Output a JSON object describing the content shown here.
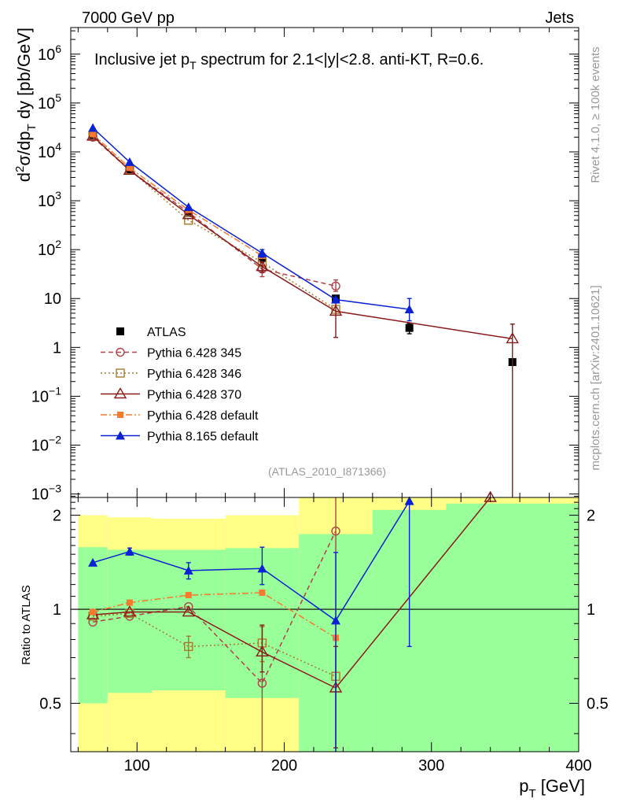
{
  "header": {
    "left": "7000 GeV pp",
    "right": "Jets"
  },
  "side_texts": {
    "rivet": "Rivet 4.1.0, ≥ 100k events",
    "mcplots": "mcplots.cern.ch [arXiv:2401.10621]"
  },
  "watermark": "(ATLAS_2010_I871366)",
  "colors": {
    "atlas": "#000000",
    "p345": "#b0424a",
    "p346": "#a67a2e",
    "p370": "#8b1a1a",
    "p6def": "#f57a2f",
    "p8def": "#0a22d4",
    "band_green": "#99ff99",
    "band_yellow": "#ffff88"
  },
  "chart_data": [
    {
      "type": "line",
      "title": "Inclusive jet p_T spectrum for 2.1<|y|<2.8.  anti-KT, R=0.6.",
      "title_parts": {
        "pre": "Inclusive jet p",
        "sub": "T",
        "post": " spectrum for 2.1<|y|<2.8.  anti-KT, R=0.6."
      },
      "ylabel": "d²σ/dp_T dy [pb/GeV]",
      "ylabel_parts": {
        "d": "d",
        "sup2": "2",
        "sigma": "σ/dp",
        "T": "T",
        "rest": " dy [pb/GeV]"
      },
      "yscale": "log",
      "ylim": [
        0.00085,
        3500000
      ],
      "xlim": [
        55,
        400
      ],
      "yticks": [
        {
          "v": 1000000,
          "b": "10",
          "e": "6"
        },
        {
          "v": 100000,
          "b": "10",
          "e": "5"
        },
        {
          "v": 10000,
          "b": "10",
          "e": "4"
        },
        {
          "v": 1000,
          "b": "10",
          "e": "3"
        },
        {
          "v": 100,
          "b": "10",
          "e": "2"
        },
        {
          "v": 10,
          "b": "10",
          "e": ""
        },
        {
          "v": 1,
          "b": "1",
          "e": ""
        },
        {
          "v": 0.1,
          "b": "10",
          "e": "−1"
        },
        {
          "v": 0.01,
          "b": "10",
          "e": "−2"
        },
        {
          "v": 0.001,
          "b": "10",
          "e": "−3"
        }
      ],
      "legend_position": "lower-left",
      "series": [
        {
          "name": "ATLAS",
          "key": "atlas",
          "marker": "square-filled",
          "line": "none",
          "x": [
            70,
            95,
            135,
            185,
            235,
            285,
            355
          ],
          "y": [
            22000,
            4400,
            560,
            68,
            10,
            2.5,
            0.5
          ],
          "err": [
            [
              0,
              0
            ],
            [
              0,
              0
            ],
            [
              0,
              0
            ],
            [
              0,
              0
            ],
            [
              0,
              0
            ],
            [
              0.6,
              0.6
            ],
            [
              0,
              0
            ]
          ]
        },
        {
          "name": "Pythia 6.428 345",
          "key": "p345",
          "marker": "circle-open",
          "line": "dashed",
          "x": [
            70,
            95,
            135,
            185,
            235
          ],
          "y": [
            20000,
            4200,
            580,
            40,
            18
          ],
          "err": [
            [
              0,
              0
            ],
            [
              0,
              0
            ],
            [
              0,
              0
            ],
            [
              12,
              8
            ],
            [
              4,
              6
            ]
          ]
        },
        {
          "name": "Pythia 6.428 346",
          "key": "p346",
          "marker": "square-open",
          "line": "dotted",
          "x": [
            70,
            95,
            135,
            185,
            235
          ],
          "y": [
            21000,
            4300,
            400,
            55,
            6
          ],
          "err": [
            [
              0,
              0
            ],
            [
              0,
              0
            ],
            [
              0,
              0
            ],
            [
              0,
              0
            ],
            [
              0,
              0
            ]
          ]
        },
        {
          "name": "Pythia 6.428 370",
          "key": "p370",
          "marker": "triangle-open",
          "line": "solid",
          "x": [
            70,
            95,
            135,
            185,
            235,
            355
          ],
          "y": [
            21000,
            4200,
            520,
            45,
            5.5,
            1.5
          ],
          "err": [
            [
              0,
              0
            ],
            [
              0,
              0
            ],
            [
              0,
              0
            ],
            [
              10,
              10
            ],
            [
              3.9,
              4.5
            ],
            [
              1.5,
              1.5
            ]
          ]
        },
        {
          "name": "Pythia 6.428 default",
          "key": "p6def",
          "marker": "square-filled-small",
          "line": "dashdot",
          "x": [
            70,
            95,
            135,
            185
          ],
          "y": [
            23000,
            4700,
            650,
            75
          ],
          "err": [
            [
              0,
              0
            ],
            [
              0,
              0
            ],
            [
              0,
              0
            ],
            [
              0,
              0
            ]
          ]
        },
        {
          "name": "Pythia 8.165 default",
          "key": "p8def",
          "marker": "triangle-filled",
          "line": "solid",
          "x": [
            70,
            95,
            135,
            185,
            235,
            285
          ],
          "y": [
            31000,
            6200,
            740,
            85,
            9.5,
            6
          ],
          "err": [
            [
              0,
              0
            ],
            [
              0,
              0
            ],
            [
              0,
              0
            ],
            [
              15,
              15
            ],
            [
              0,
              0
            ],
            [
              2.5,
              4
            ]
          ]
        }
      ]
    },
    {
      "type": "line",
      "title": "",
      "xlabel": "p_T [GeV]",
      "xlabel_parts": {
        "p": "p",
        "T": "T",
        "rest": " [GeV]"
      },
      "ylabel": "Ratio to ATLAS",
      "yscale": "log",
      "ylim": [
        0.35,
        2.28
      ],
      "xlim": [
        55,
        400
      ],
      "yticks": [
        {
          "v": 2,
          "label": "2"
        },
        {
          "v": 1,
          "label": "1"
        },
        {
          "v": 0.5,
          "label": "0.5"
        }
      ],
      "xticks": [
        {
          "v": 100,
          "label": "100"
        },
        {
          "v": 200,
          "label": "200"
        },
        {
          "v": 300,
          "label": "300"
        },
        {
          "v": 400,
          "label": "400"
        }
      ],
      "reference_line": 1,
      "bands": {
        "edges": [
          60,
          80,
          110,
          160,
          210,
          260,
          310,
          400
        ],
        "green": [
          [
            0.5,
            1.58
          ],
          [
            0.54,
            1.55
          ],
          [
            0.55,
            1.55
          ],
          [
            0.52,
            1.57
          ],
          [
            0.35,
            1.74
          ],
          [
            0.35,
            2.08
          ],
          [
            0.35,
            2.18
          ]
        ],
        "yellow": [
          [
            0.35,
            2.0
          ],
          [
            0.35,
            1.97
          ],
          [
            0.35,
            1.95
          ],
          [
            0.35,
            2.0
          ],
          [
            0.35,
            2.28
          ],
          [
            0.35,
            2.28
          ],
          [
            0.35,
            2.28
          ]
        ]
      },
      "series": [
        {
          "key": "p345",
          "marker": "circle-open",
          "line": "dashed",
          "x": [
            70,
            95,
            135,
            185,
            235
          ],
          "y": [
            0.91,
            0.95,
            1.02,
            0.58,
            1.78
          ],
          "err": [
            [
              0,
              0
            ],
            [
              0,
              0
            ],
            [
              0,
              0
            ],
            [
              0.3,
              0.3
            ],
            [
              1.5,
              1.3
            ]
          ]
        },
        {
          "key": "p346",
          "marker": "square-open",
          "line": "dotted",
          "x": [
            70,
            95,
            135,
            185,
            235
          ],
          "y": [
            0.95,
            0.97,
            0.76,
            0.78,
            0.61
          ],
          "err": [
            [
              0,
              0
            ],
            [
              0,
              0
            ],
            [
              0.06,
              0.06
            ],
            [
              0.1,
              0.1
            ],
            [
              0,
              0
            ]
          ]
        },
        {
          "key": "p370",
          "marker": "triangle-open",
          "line": "solid",
          "x": [
            70,
            95,
            135,
            185,
            235,
            340
          ],
          "y": [
            0.96,
            0.98,
            0.98,
            0.73,
            0.56,
            2.28
          ],
          "err": [
            [
              0,
              0
            ],
            [
              0,
              0
            ],
            [
              0,
              0
            ],
            [
              0.1,
              0.16
            ],
            [
              0.2,
              0.2
            ],
            [
              0,
              0
            ]
          ]
        },
        {
          "key": "p6def",
          "marker": "square-filled-small",
          "line": "dashdot",
          "x": [
            70,
            95,
            135,
            185,
            235
          ],
          "y": [
            0.98,
            1.05,
            1.11,
            1.13,
            0.81
          ],
          "err": [
            [
              0,
              0
            ],
            [
              0,
              0
            ],
            [
              0,
              0
            ],
            [
              0,
              0
            ],
            [
              0,
              0
            ]
          ]
        },
        {
          "key": "p8def",
          "marker": "triangle-filled",
          "line": "solid",
          "x": [
            70,
            95,
            135,
            185,
            235,
            285
          ],
          "y": [
            1.41,
            1.53,
            1.33,
            1.35,
            0.92,
            2.22
          ],
          "err": [
            [
              0,
              0
            ],
            [
              0.04,
              0.04
            ],
            [
              0.08,
              0.08
            ],
            [
              0.15,
              0.23
            ],
            [
              0.6,
              0.6
            ],
            [
              1.46,
              0
            ]
          ]
        }
      ]
    }
  ]
}
